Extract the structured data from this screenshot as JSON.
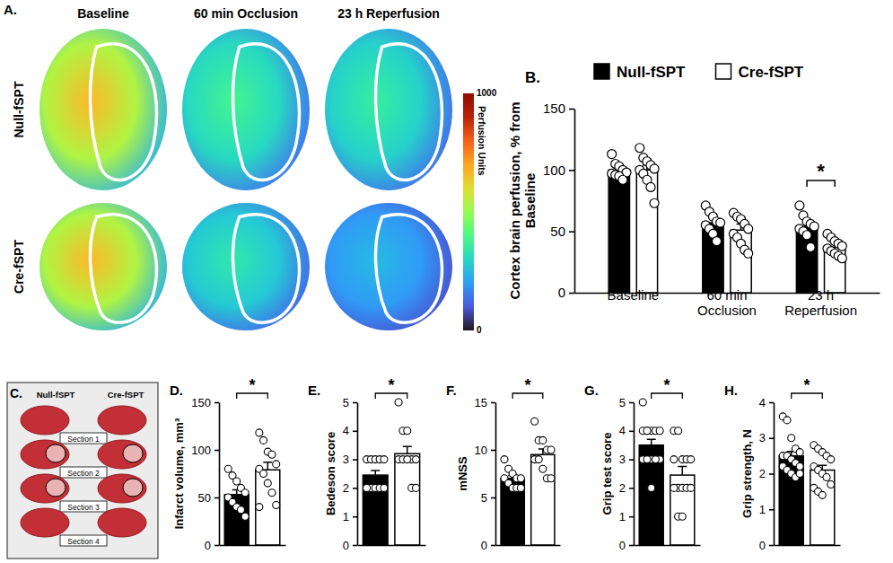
{
  "perfusion_images": {
    "panel": "A.",
    "columns": [
      "Baseline",
      "60 min Occlusion",
      "23 h Reperfusion"
    ],
    "rows": [
      "Null-fSPT",
      "Cre-fSPT"
    ],
    "colorbar": {
      "title": "Perfusion Units",
      "range": [
        0,
        1000
      ],
      "ticks": [
        0,
        1000
      ]
    }
  },
  "photo": {
    "panel": "C.",
    "columns": [
      "Null-fSPT",
      "Cre-fSPT"
    ],
    "sections": [
      "Section 1",
      "Section 2",
      "Section 3",
      "Section 4"
    ]
  },
  "chart_data": [
    {
      "type": "bar",
      "panel": "B.",
      "categories": [
        "Baseline",
        "60 min Occlusion",
        "23 h Reperfusion"
      ],
      "series": [
        {
          "name": "Null-fSPT",
          "color": "#000000",
          "values": [
            100,
            57,
            54
          ],
          "errors": [
            2,
            4,
            3
          ],
          "points": [
            [
              113,
              105,
              103,
              100,
              98,
              97,
              96,
              95,
              92
            ],
            [
              71,
              66,
              62,
              58,
              57,
              55,
              52,
              48,
              42
            ],
            [
              71,
              63,
              58,
              56,
              54,
              52,
              50,
              47,
              37
            ]
          ]
        },
        {
          "name": "Cre-fSPT",
          "color": "#ffffff",
          "values": [
            100,
            51,
            37
          ],
          "errors": [
            4,
            5,
            3.5
          ],
          "points": [
            [
              118,
              110,
              107,
              104,
              101,
              100,
              97,
              92,
              86,
              73
            ],
            [
              65,
              62,
              60,
              56,
              52,
              48,
              45,
              40,
              35,
              32
            ],
            [
              48,
              45,
              42,
              40,
              38,
              36,
              34,
              32,
              30,
              28
            ]
          ]
        }
      ],
      "y_label": "Cortex brain perfusion, % from Baseline",
      "ylim": [
        0,
        150
      ],
      "yticks": [
        0,
        50,
        100,
        150
      ],
      "legend": "top",
      "annotations": [
        {
          "text": "*",
          "category": "23 h Reperfusion"
        }
      ]
    },
    {
      "type": "bar",
      "panel": "D.",
      "categories": [
        null,
        null
      ],
      "values": [
        53,
        79
      ],
      "errors": [
        5,
        8
      ],
      "colors": [
        "#000000",
        "#ffffff"
      ],
      "points": [
        [
          80,
          73,
          67,
          60,
          55,
          50,
          45,
          40,
          37,
          30
        ],
        [
          118,
          110,
          98,
          95,
          85,
          80,
          75,
          65,
          55,
          42,
          40
        ]
      ],
      "y_label": "Infarct volume, mm³",
      "ylim": [
        0,
        150
      ],
      "yticks": [
        0,
        50,
        100,
        150
      ],
      "annotations": [
        {
          "text": "*"
        }
      ]
    },
    {
      "type": "bar",
      "panel": "E.",
      "categories": [
        null,
        null
      ],
      "values": [
        2.45,
        3.2
      ],
      "errors": [
        0.16,
        0.25
      ],
      "colors": [
        "#000000",
        "#ffffff"
      ],
      "points": [
        [
          3,
          3,
          3,
          3,
          3,
          2,
          2,
          2,
          2,
          2,
          2
        ],
        [
          5,
          4,
          4,
          3,
          3,
          3,
          3,
          3,
          2,
          2
        ]
      ],
      "y_label": "Bedeson score",
      "ylim": [
        0,
        5
      ],
      "yticks": [
        0,
        1,
        2,
        3,
        4,
        5
      ],
      "annotations": [
        {
          "text": "*"
        }
      ]
    },
    {
      "type": "bar",
      "panel": "F.",
      "categories": [
        null,
        null
      ],
      "values": [
        7,
        9.5
      ],
      "errors": [
        0.3,
        0.6
      ],
      "colors": [
        "#000000",
        "#ffffff"
      ],
      "points": [
        [
          9,
          8,
          7.5,
          7,
          7,
          7,
          6.5,
          6,
          6,
          6
        ],
        [
          13,
          11,
          11,
          10,
          10,
          9,
          9,
          8,
          7,
          7
        ]
      ],
      "y_label": "mNSS",
      "ylim": [
        0,
        15
      ],
      "yticks": [
        0,
        5,
        10,
        15
      ],
      "annotations": [
        {
          "text": "*"
        }
      ]
    },
    {
      "type": "bar",
      "panel": "G.",
      "categories": [
        null,
        null
      ],
      "values": [
        3.5,
        2.45
      ],
      "errors": [
        0.2,
        0.3
      ],
      "colors": [
        "#000000",
        "#ffffff"
      ],
      "points": [
        [
          5,
          4,
          4,
          4,
          4,
          4,
          4,
          3,
          3,
          3,
          3,
          3,
          2,
          3
        ],
        [
          4,
          4,
          3,
          3,
          3,
          3,
          2,
          2,
          2,
          2,
          2,
          1,
          1
        ]
      ],
      "y_label": "Grip test score",
      "ylim": [
        0,
        5
      ],
      "yticks": [
        0,
        1,
        2,
        3,
        4,
        5
      ],
      "annotations": [
        {
          "text": "*"
        }
      ]
    },
    {
      "type": "bar",
      "panel": "H.",
      "categories": [
        null,
        null
      ],
      "values": [
        2.5,
        2.1
      ],
      "errors": [
        0.12,
        0.13
      ],
      "colors": [
        "#000000",
        "#ffffff"
      ],
      "points": [
        [
          3.6,
          3.5,
          3.0,
          2.7,
          2.6,
          2.5,
          2.5,
          2.4,
          2.3,
          2.2,
          2.2,
          2.1,
          2.0,
          1.9,
          2.0
        ],
        [
          2.8,
          2.7,
          2.6,
          2.5,
          2.4,
          2.2,
          2.1,
          2.0,
          1.9,
          1.7,
          1.6,
          1.5,
          1.4
        ]
      ],
      "y_label": "Grip strength, N",
      "ylim": [
        0,
        4
      ],
      "yticks": [
        0,
        1,
        2,
        3,
        4
      ],
      "annotations": [
        {
          "text": "*"
        }
      ]
    }
  ]
}
